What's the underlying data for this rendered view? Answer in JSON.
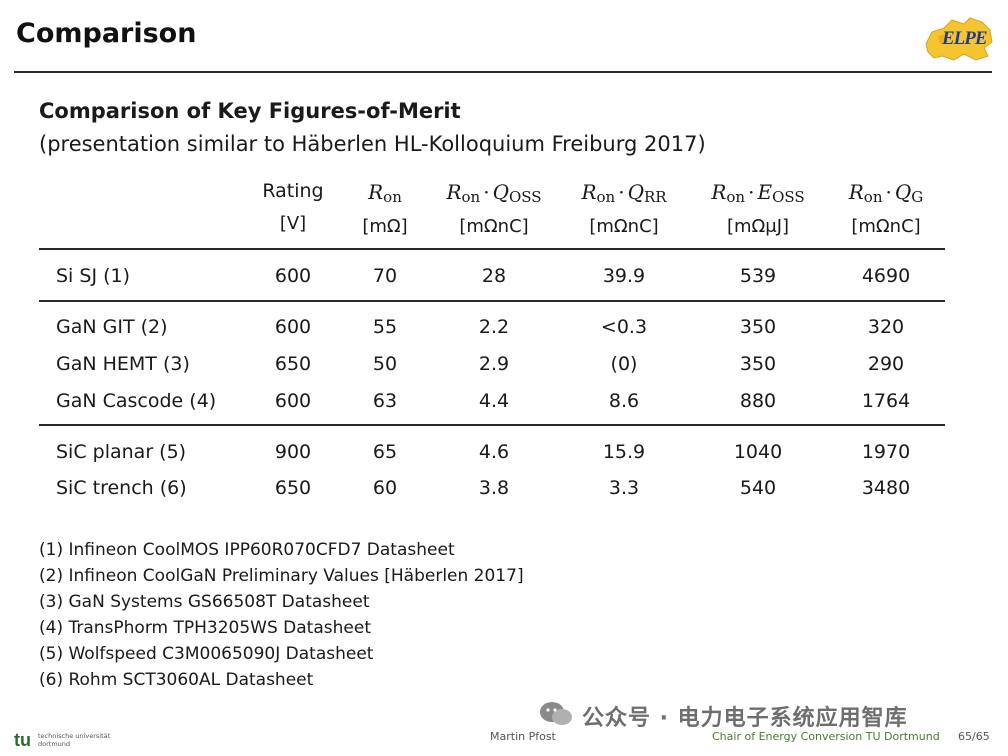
{
  "slide": {
    "title": "Comparison"
  },
  "logo": {
    "text": "ELPE"
  },
  "heading": "Comparison of Key Figures-of-Merit",
  "subheading": "(presentation similar to Häberlen HL-Kolloquium Freiburg 2017)",
  "table": {
    "columns": [
      {
        "label": "Rating",
        "unit": "[V]"
      },
      {
        "label": "R_on",
        "unit": "[mΩ]"
      },
      {
        "label": "R_on · Q_OSS",
        "unit": "[mΩnC]"
      },
      {
        "label": "R_on · Q_RR",
        "unit": "[mΩnC]"
      },
      {
        "label": "R_on · E_OSS",
        "unit": "[mΩμJ]"
      },
      {
        "label": "R_on · Q_G",
        "unit": "[mΩnC]"
      }
    ],
    "rows": [
      {
        "name": "Si SJ (1)",
        "values": [
          "600",
          "70",
          "28",
          "39.9",
          "539",
          "4690"
        ]
      },
      {
        "name": "GaN GIT (2)",
        "values": [
          "600",
          "55",
          "2.2",
          "<0.3",
          "350",
          "320"
        ]
      },
      {
        "name": "GaN HEMT (3)",
        "values": [
          "650",
          "50",
          "2.9",
          "(0)",
          "350",
          "290"
        ]
      },
      {
        "name": "GaN Cascode (4)",
        "values": [
          "600",
          "63",
          "4.4",
          "8.6",
          "880",
          "1764"
        ]
      },
      {
        "name": "SiC planar (5)",
        "values": [
          "900",
          "65",
          "4.6",
          "15.9",
          "1040",
          "1970"
        ]
      },
      {
        "name": "SiC trench (6)",
        "values": [
          "650",
          "60",
          "3.8",
          "3.3",
          "540",
          "3480"
        ]
      }
    ]
  },
  "references": [
    "(1) Infineon CoolMOS IPP60R070CFD7 Datasheet",
    "(2) Infineon CoolGaN Preliminary Values [Häberlen 2017]",
    "(3) GaN Systems GS66508T Datasheet",
    "(4) TransPhorm TPH3205WS Datasheet",
    "(5) Wolfspeed C3M0065090J Datasheet",
    "(6) Rohm SCT3060AL Datasheet"
  ],
  "footer": {
    "tu_mark": "tu",
    "tu_line1": "technische universität",
    "tu_line2": "dortmund",
    "author": "Martin Pfost",
    "chair": "Chair of Energy Conversion TU Dortmund",
    "page": "65/65"
  },
  "watermark": "公众号 · 电力电子系统应用智库",
  "colors": {
    "chair": "#4a7a2f",
    "footer_text": "#555555"
  }
}
